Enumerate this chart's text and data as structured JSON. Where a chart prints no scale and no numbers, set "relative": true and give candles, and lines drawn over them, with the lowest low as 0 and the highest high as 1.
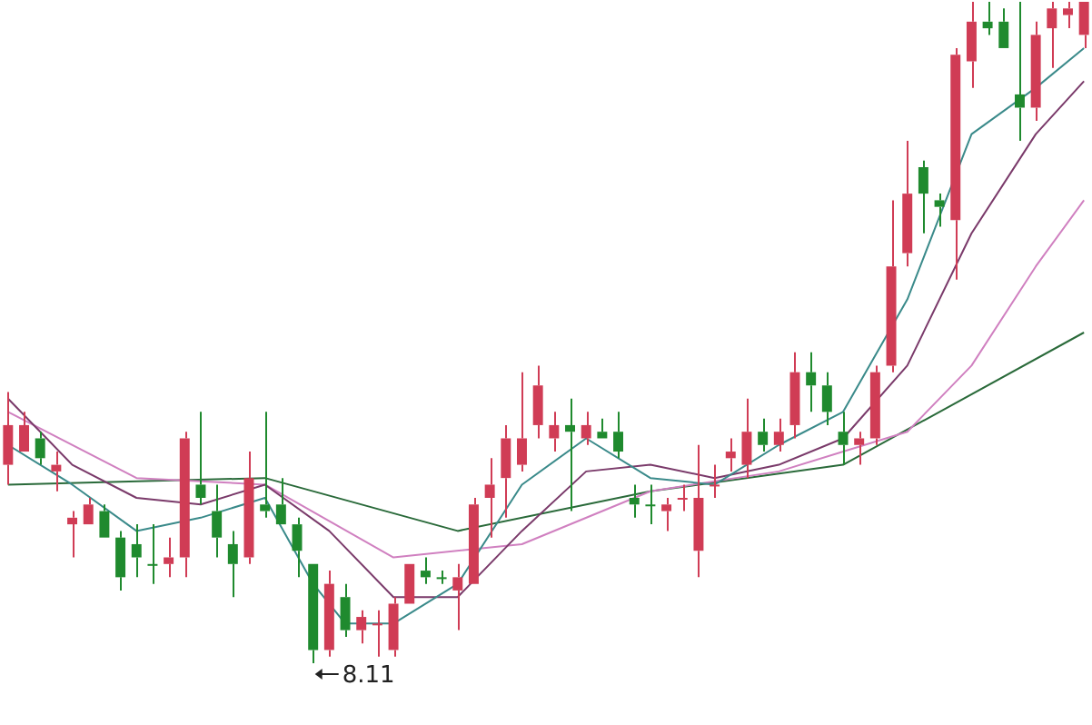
{
  "chart_data": {
    "type": "candlestick",
    "relative": true,
    "categories": [
      null,
      null,
      null,
      null,
      null,
      null,
      null,
      null,
      null,
      null,
      null,
      null,
      null,
      null,
      null,
      null,
      null,
      null,
      null,
      null,
      null,
      null,
      null,
      null,
      null,
      null,
      null,
      null,
      null,
      null,
      null,
      null,
      null,
      null,
      null,
      null,
      null,
      null,
      null,
      null,
      null,
      null,
      null,
      null,
      null,
      null,
      null,
      null,
      null,
      null,
      null,
      null,
      null,
      null,
      null,
      null,
      null,
      null,
      null,
      null,
      null,
      null,
      null,
      null,
      null,
      null,
      null,
      null
    ],
    "ohlc": [
      [
        0.3,
        0.41,
        0.27,
        0.36
      ],
      [
        0.32,
        0.38,
        0.32,
        0.36
      ],
      [
        0.34,
        0.35,
        0.3,
        0.31
      ],
      [
        0.29,
        0.32,
        0.26,
        0.3
      ],
      [
        0.21,
        0.23,
        0.16,
        0.22
      ],
      [
        0.21,
        0.25,
        0.21,
        0.24
      ],
      [
        0.23,
        0.24,
        0.19,
        0.19
      ],
      [
        0.19,
        0.2,
        0.11,
        0.13
      ],
      [
        0.18,
        0.21,
        0.13,
        0.16
      ],
      [
        0.15,
        0.21,
        0.12,
        0.15
      ],
      [
        0.15,
        0.19,
        0.13,
        0.16
      ],
      [
        0.16,
        0.35,
        0.13,
        0.34
      ],
      [
        0.27,
        0.38,
        0.24,
        0.25
      ],
      [
        0.23,
        0.27,
        0.16,
        0.19
      ],
      [
        0.18,
        0.2,
        0.1,
        0.15
      ],
      [
        0.16,
        0.32,
        0.15,
        0.28
      ],
      [
        0.24,
        0.38,
        0.22,
        0.23
      ],
      [
        0.24,
        0.28,
        0.21,
        0.21
      ],
      [
        0.21,
        0.22,
        0.13,
        0.17
      ],
      [
        0.15,
        0.15,
        0,
        0.02
      ],
      [
        0.02,
        0.14,
        0.01,
        0.12
      ],
      [
        0.1,
        0.12,
        0.04,
        0.05
      ],
      [
        0.05,
        0.08,
        0.03,
        0.07
      ],
      [
        0.06,
        0.08,
        0.01,
        0.06
      ],
      [
        0.02,
        0.1,
        0.01,
        0.09
      ],
      [
        0.09,
        0.15,
        0.09,
        0.15
      ],
      [
        0.14,
        0.16,
        0.12,
        0.13
      ],
      [
        0.13,
        0.14,
        0.12,
        0.13
      ],
      [
        0.11,
        0.15,
        0.05,
        0.13
      ],
      [
        0.12,
        0.25,
        0.12,
        0.24
      ],
      [
        0.25,
        0.31,
        0.19,
        0.27
      ],
      [
        0.28,
        0.36,
        0.22,
        0.34
      ],
      [
        0.3,
        0.44,
        0.29,
        0.34
      ],
      [
        0.36,
        0.45,
        0.34,
        0.42
      ],
      [
        0.34,
        0.38,
        0.32,
        0.36
      ],
      [
        0.36,
        0.4,
        0.23,
        0.35
      ],
      [
        0.34,
        0.38,
        0.33,
        0.36
      ],
      [
        0.35,
        0.37,
        0.34,
        0.34
      ],
      [
        0.35,
        0.38,
        0.31,
        0.32
      ],
      [
        0.25,
        0.27,
        0.22,
        0.24
      ],
      [
        0.24,
        0.27,
        0.21,
        0.24
      ],
      [
        0.23,
        0.25,
        0.2,
        0.24
      ],
      [
        0.25,
        0.27,
        0.23,
        0.25
      ],
      [
        0.17,
        0.33,
        0.13,
        0.25
      ],
      [
        0.27,
        0.3,
        0.25,
        0.27
      ],
      [
        0.31,
        0.34,
        0.29,
        0.32
      ],
      [
        0.3,
        0.4,
        0.28,
        0.35
      ],
      [
        0.35,
        0.37,
        0.32,
        0.33
      ],
      [
        0.33,
        0.37,
        0.32,
        0.35
      ],
      [
        0.36,
        0.47,
        0.34,
        0.44
      ],
      [
        0.44,
        0.47,
        0.38,
        0.42
      ],
      [
        0.42,
        0.44,
        0.36,
        0.38
      ],
      [
        0.35,
        0.38,
        0.3,
        0.33
      ],
      [
        0.33,
        0.35,
        0.3,
        0.34
      ],
      [
        0.34,
        0.45,
        0.33,
        0.44
      ],
      [
        0.45,
        0.7,
        0.44,
        0.6
      ],
      [
        0.62,
        0.79,
        0.6,
        0.71
      ],
      [
        0.75,
        0.76,
        0.65,
        0.71
      ],
      [
        0.7,
        0.71,
        0.66,
        0.69
      ],
      [
        0.67,
        0.93,
        0.58,
        0.92
      ],
      [
        0.91,
        1,
        0.87,
        0.97
      ],
      [
        0.97,
        1,
        0.95,
        0.96
      ],
      [
        0.97,
        0.99,
        0.93,
        0.93
      ],
      [
        0.86,
        1,
        0.79,
        0.84
      ],
      [
        0.84,
        0.97,
        0.82,
        0.95
      ],
      [
        0.96,
        1,
        0.9,
        0.99
      ],
      [
        0.98,
        1,
        0.96,
        0.99
      ],
      [
        0.95,
        1,
        0.93,
        1
      ]
    ],
    "colors": [
      "#d03c55",
      "#d03c55",
      "#1f8a2e",
      "#d03c55",
      "#d03c55",
      "#d03c55",
      "#1f8a2e",
      "#1f8a2e",
      "#1f8a2e",
      "#1f8a2e",
      "#d03c55",
      "#d03c55",
      "#1f8a2e",
      "#1f8a2e",
      "#1f8a2e",
      "#d03c55",
      "#1f8a2e",
      "#1f8a2e",
      "#1f8a2e",
      "#1f8a2e",
      "#d03c55",
      "#1f8a2e",
      "#d03c55",
      "#d03c55",
      "#d03c55",
      "#d03c55",
      "#1f8a2e",
      "#1f8a2e",
      "#d03c55",
      "#d03c55",
      "#d03c55",
      "#d03c55",
      "#d03c55",
      "#d03c55",
      "#d03c55",
      "#1f8a2e",
      "#d03c55",
      "#1f8a2e",
      "#1f8a2e",
      "#1f8a2e",
      "#1f8a2e",
      "#d03c55",
      "#d03c55",
      "#d03c55",
      "#d03c55",
      "#d03c55",
      "#d03c55",
      "#1f8a2e",
      "#d03c55",
      "#d03c55",
      "#1f8a2e",
      "#1f8a2e",
      "#1f8a2e",
      "#d03c55",
      "#d03c55",
      "#d03c55",
      "#d03c55",
      "#1f8a2e",
      "#1f8a2e",
      "#d03c55",
      "#d03c55",
      "#1f8a2e",
      "#1f8a2e",
      "#1f8a2e",
      "#d03c55",
      "#d03c55",
      "#d03c55",
      "#d03c55"
    ],
    "series": [
      {
        "type": "line",
        "color": "#3a8a8a",
        "values": [
          0.33,
          null,
          null,
          null,
          0.27,
          null,
          null,
          null,
          0.2,
          null,
          null,
          null,
          0.22,
          null,
          null,
          null,
          0.25,
          null,
          null,
          0.12,
          null,
          0.06,
          null,
          null,
          0.06,
          null,
          null,
          null,
          0.12,
          null,
          null,
          null,
          0.27,
          null,
          null,
          null,
          0.34,
          null,
          null,
          null,
          0.28,
          null,
          null,
          null,
          0.27,
          null,
          null,
          null,
          0.33,
          null,
          null,
          null,
          0.38,
          null,
          null,
          null,
          0.55,
          null,
          null,
          null,
          0.8,
          null,
          null,
          null,
          0.87,
          null,
          null,
          0.93
        ]
      },
      {
        "type": "line",
        "color": "#7a3a6a",
        "values": [
          0.4,
          null,
          null,
          null,
          0.3,
          null,
          null,
          null,
          0.25,
          null,
          null,
          null,
          0.24,
          null,
          null,
          null,
          0.27,
          null,
          null,
          null,
          0.2,
          null,
          null,
          null,
          0.1,
          null,
          null,
          null,
          0.1,
          null,
          null,
          null,
          0.2,
          null,
          null,
          null,
          0.29,
          null,
          null,
          null,
          0.3,
          null,
          null,
          null,
          0.28,
          null,
          null,
          null,
          0.3,
          null,
          null,
          null,
          0.34,
          null,
          null,
          null,
          0.45,
          null,
          null,
          null,
          0.65,
          null,
          null,
          null,
          0.8,
          null,
          null,
          0.88
        ]
      },
      {
        "type": "line",
        "color": "#d080c0",
        "values": [
          0.38,
          null,
          null,
          null,
          null,
          null,
          null,
          null,
          0.28,
          null,
          null,
          null,
          null,
          null,
          null,
          null,
          0.27,
          null,
          null,
          null,
          null,
          null,
          null,
          null,
          0.16,
          null,
          null,
          null,
          null,
          null,
          null,
          null,
          0.18,
          null,
          null,
          null,
          null,
          null,
          null,
          null,
          0.26,
          null,
          null,
          null,
          null,
          null,
          null,
          null,
          0.29,
          null,
          null,
          null,
          null,
          null,
          null,
          null,
          0.35,
          null,
          null,
          null,
          0.45,
          null,
          null,
          null,
          0.6,
          null,
          null,
          0.7
        ]
      },
      {
        "type": "line",
        "color": "#2a6a3a",
        "values": [
          0.27,
          null,
          null,
          null,
          null,
          null,
          null,
          null,
          null,
          null,
          null,
          null,
          null,
          null,
          null,
          null,
          0.28,
          null,
          null,
          null,
          null,
          null,
          null,
          null,
          null,
          null,
          null,
          null,
          0.2,
          null,
          null,
          null,
          null,
          null,
          null,
          null,
          null,
          null,
          null,
          null,
          0.26,
          null,
          null,
          null,
          null,
          null,
          null,
          null,
          null,
          null,
          null,
          null,
          0.3,
          null,
          null,
          null,
          null,
          null,
          null,
          null,
          null,
          null,
          null,
          null,
          null,
          null,
          null,
          0.5
        ]
      }
    ],
    "annotations": [
      "8.11"
    ]
  }
}
